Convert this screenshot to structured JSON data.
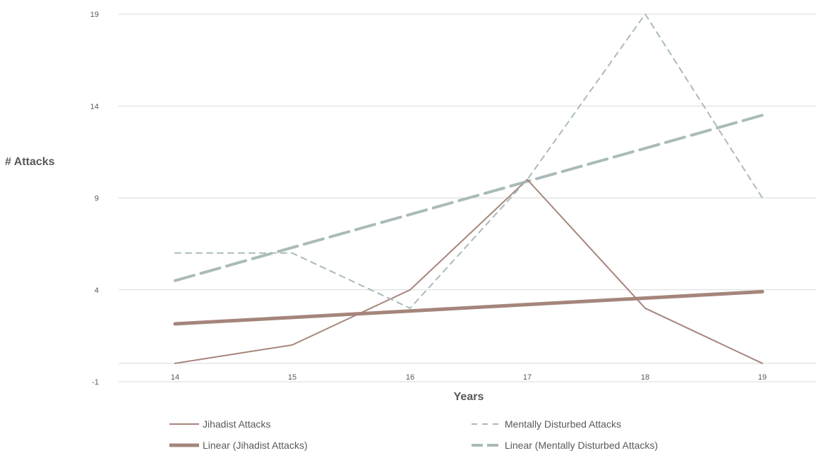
{
  "chart_data": {
    "type": "line",
    "xlabel": "Years",
    "ylabel": "# Attacks",
    "categories": [
      "14",
      "15",
      "16",
      "17",
      "18",
      "19"
    ],
    "yticks": [
      "-1",
      "4",
      "9",
      "14",
      "19"
    ],
    "ylim": [
      -1,
      19
    ],
    "grid": true,
    "legend_position": "bottom",
    "series": [
      {
        "name": "Jihadist Attacks",
        "values": [
          0,
          1,
          4,
          10,
          3,
          0
        ],
        "color": "#a5857b",
        "style": "solid"
      },
      {
        "name": "Mentally Disturbed Attacks",
        "values": [
          6,
          6,
          3,
          10,
          19,
          9
        ],
        "color": "#a9bbb8",
        "style": "dashed"
      },
      {
        "name": "Linear (Jihadist Attacks)",
        "values": [
          2.15,
          2.5,
          2.85,
          3.2,
          3.55,
          3.9
        ],
        "color": "#a5857b",
        "style": "trend-solid"
      },
      {
        "name": "Linear (Mentally Disturbed Attacks)",
        "values": [
          4.5,
          6.3,
          8.1,
          9.9,
          11.7,
          13.5
        ],
        "color": "#a9bbb8",
        "style": "trend-dashed"
      }
    ]
  }
}
